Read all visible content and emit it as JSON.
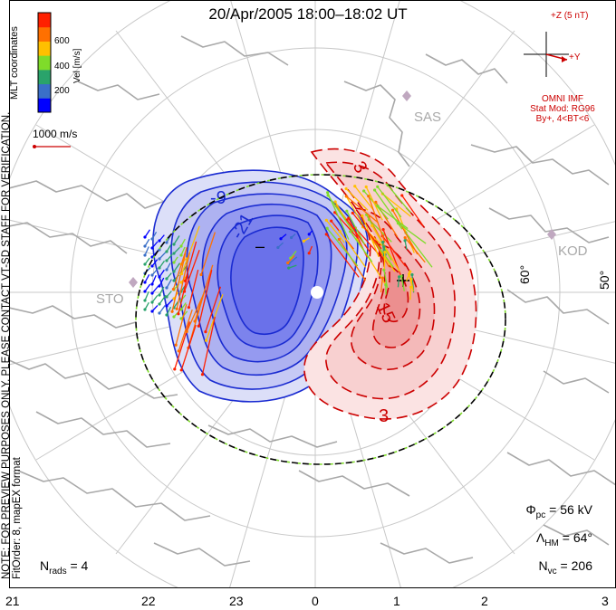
{
  "title": "20/Apr/2005 18:00–18:02 UT",
  "note_line1": "NOTE: FOR PREVIEW PURPOSES ONLY. PLEASE CONTACT VT-SD STAFF FOR VERIFICATION.",
  "note_line2": "FitOrder: 8,  mapEX format",
  "mlt_label": "MLT coordinates",
  "colorbar": {
    "label": "Vel [m/s]",
    "ticks": [
      "600",
      "400",
      "200"
    ],
    "colors": [
      "#0000ff",
      "#3a6fc8",
      "#2aa36b",
      "#7fdc2a",
      "#ffc000",
      "#ff7000",
      "#ff2000"
    ]
  },
  "vector_scale": "1000 m/s",
  "imf": {
    "z_label": "+Z (5 nT)",
    "y_label": "+Y",
    "source": "OMNI IMF",
    "model": "Stat Mod: RG96",
    "condition": "By+, 4<BT<6"
  },
  "stations": [
    "SAS",
    "KOD",
    "STO"
  ],
  "lat_labels": [
    "60°",
    "50°"
  ],
  "contour_labels": [
    "-9",
    "-21",
    "3",
    "15",
    "3"
  ],
  "extrema": [
    "–",
    "+"
  ],
  "stats": {
    "phi_pc": "Φ",
    "phi_pc_sub": "pc",
    "phi_pc_value": " = 56 kV",
    "lambda_hm": "Λ",
    "lambda_hm_sub": "HM",
    "lambda_hm_value": " = 64°",
    "n_vc": "N",
    "n_vc_sub": "vc",
    "n_vc_value": " = 206",
    "n_rads": "N",
    "n_rads_sub": "rads",
    "n_rads_value": " = 4"
  },
  "mlt_ticks": [
    "21",
    "22",
    "23",
    "0",
    "1",
    "2",
    "3"
  ],
  "colors": {
    "negative": "#1a2bd1",
    "positive": "#cc0000",
    "hmb": "#000000",
    "hmb_dash": "#7fdc2a",
    "grid": "#c8c8c8",
    "coast": "#a8a8a8"
  }
}
